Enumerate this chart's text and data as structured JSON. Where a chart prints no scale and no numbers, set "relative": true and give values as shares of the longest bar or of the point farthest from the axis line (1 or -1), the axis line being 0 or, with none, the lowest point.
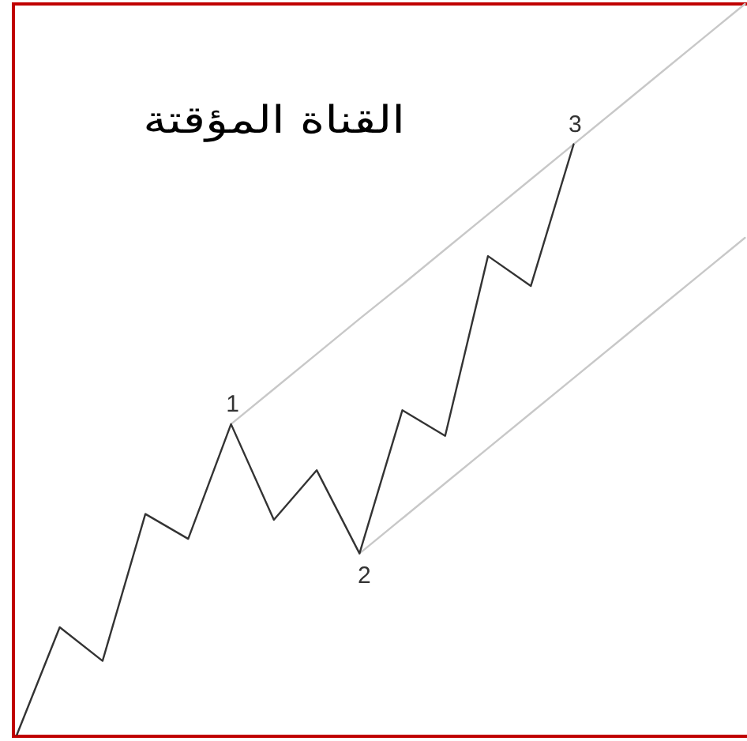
{
  "chart_data": {
    "type": "line",
    "title": "القناة المؤقتة",
    "relative": true,
    "categories": [
      null,
      null,
      null,
      null,
      null,
      null,
      null,
      null,
      null,
      null,
      null,
      null,
      null,
      null,
      null,
      null,
      null,
      null
    ],
    "series": [
      {
        "color": "#c8c8c8",
        "values": [
          null,
          null,
          null,
          null,
          null,
          0.425,
          0.473,
          0.521,
          0.569,
          0.616,
          0.664,
          0.712,
          0.76,
          0.808,
          0.856,
          0.904,
          0.952,
          1
        ]
      },
      {
        "color": "#c8c8c8",
        "values": [
          null,
          null,
          null,
          null,
          null,
          null,
          null,
          null,
          0.248,
          0.296,
          0.344,
          0.392,
          0.44,
          0.488,
          0.536,
          0.584,
          0.632,
          0.68
        ]
      },
      {
        "color": "#333333",
        "values": [
          0,
          0.147,
          0.101,
          0.302,
          0.268,
          0.425,
          0.294,
          0.362,
          0.248,
          0.444,
          0.409,
          0.655,
          0.614,
          0.808,
          null,
          null,
          null,
          null
        ]
      }
    ],
    "annotations": [
      {
        "text": "1",
        "y": 0.425
      },
      {
        "text": "2",
        "y": 0.248
      },
      {
        "text": "3",
        "y": 0.808
      }
    ]
  }
}
